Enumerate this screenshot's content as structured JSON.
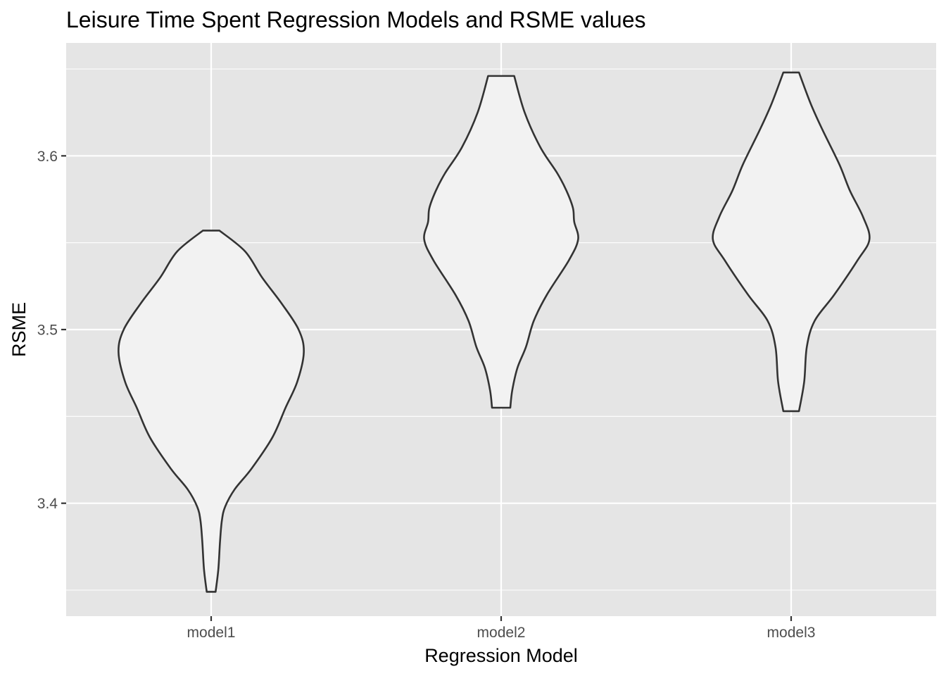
{
  "chart_data": {
    "type": "violin",
    "title": "Leisure Time Spent Regression Models and RSME values",
    "xlabel": "Regression Model",
    "ylabel": "RSME",
    "categories": [
      "model1",
      "model2",
      "model3"
    ],
    "ylim": [
      3.335,
      3.665
    ],
    "yticks": [
      3.4,
      3.5,
      3.6
    ],
    "ytick_labels": [
      "3.4",
      "3.5",
      "3.6"
    ],
    "grid": true,
    "colors": {
      "panel": "#e5e5e5",
      "grid": "#ffffff",
      "fill": "#f2f2f2",
      "outline": "#333333"
    },
    "series": [
      {
        "category": "model1",
        "min": 3.349,
        "max": 3.557,
        "profile": [
          [
            3.349,
            0.034
          ],
          [
            3.362,
            0.055
          ],
          [
            3.378,
            0.068
          ],
          [
            3.39,
            0.082
          ],
          [
            3.398,
            0.107
          ],
          [
            3.408,
            0.18
          ],
          [
            3.42,
            0.31
          ],
          [
            3.438,
            0.47
          ],
          [
            3.455,
            0.57
          ],
          [
            3.47,
            0.66
          ],
          [
            3.487,
            0.71
          ],
          [
            3.5,
            0.67
          ],
          [
            3.515,
            0.54
          ],
          [
            3.53,
            0.39
          ],
          [
            3.545,
            0.26
          ],
          [
            3.557,
            0.063
          ]
        ]
      },
      {
        "category": "model2",
        "min": 3.455,
        "max": 3.646,
        "profile": [
          [
            3.455,
            0.07
          ],
          [
            3.465,
            0.085
          ],
          [
            3.478,
            0.125
          ],
          [
            3.49,
            0.19
          ],
          [
            3.505,
            0.25
          ],
          [
            3.52,
            0.35
          ],
          [
            3.54,
            0.52
          ],
          [
            3.552,
            0.59
          ],
          [
            3.562,
            0.56
          ],
          [
            3.57,
            0.55
          ],
          [
            3.58,
            0.5
          ],
          [
            3.59,
            0.43
          ],
          [
            3.605,
            0.3
          ],
          [
            3.625,
            0.18
          ],
          [
            3.646,
            0.1
          ]
        ]
      },
      {
        "category": "model3",
        "min": 3.453,
        "max": 3.648,
        "profile": [
          [
            3.453,
            0.06
          ],
          [
            3.47,
            0.1
          ],
          [
            3.49,
            0.12
          ],
          [
            3.505,
            0.18
          ],
          [
            3.52,
            0.33
          ],
          [
            3.54,
            0.51
          ],
          [
            3.552,
            0.6
          ],
          [
            3.565,
            0.55
          ],
          [
            3.58,
            0.45
          ],
          [
            3.595,
            0.37
          ],
          [
            3.615,
            0.24
          ],
          [
            3.63,
            0.15
          ],
          [
            3.648,
            0.06
          ]
        ]
      }
    ]
  }
}
